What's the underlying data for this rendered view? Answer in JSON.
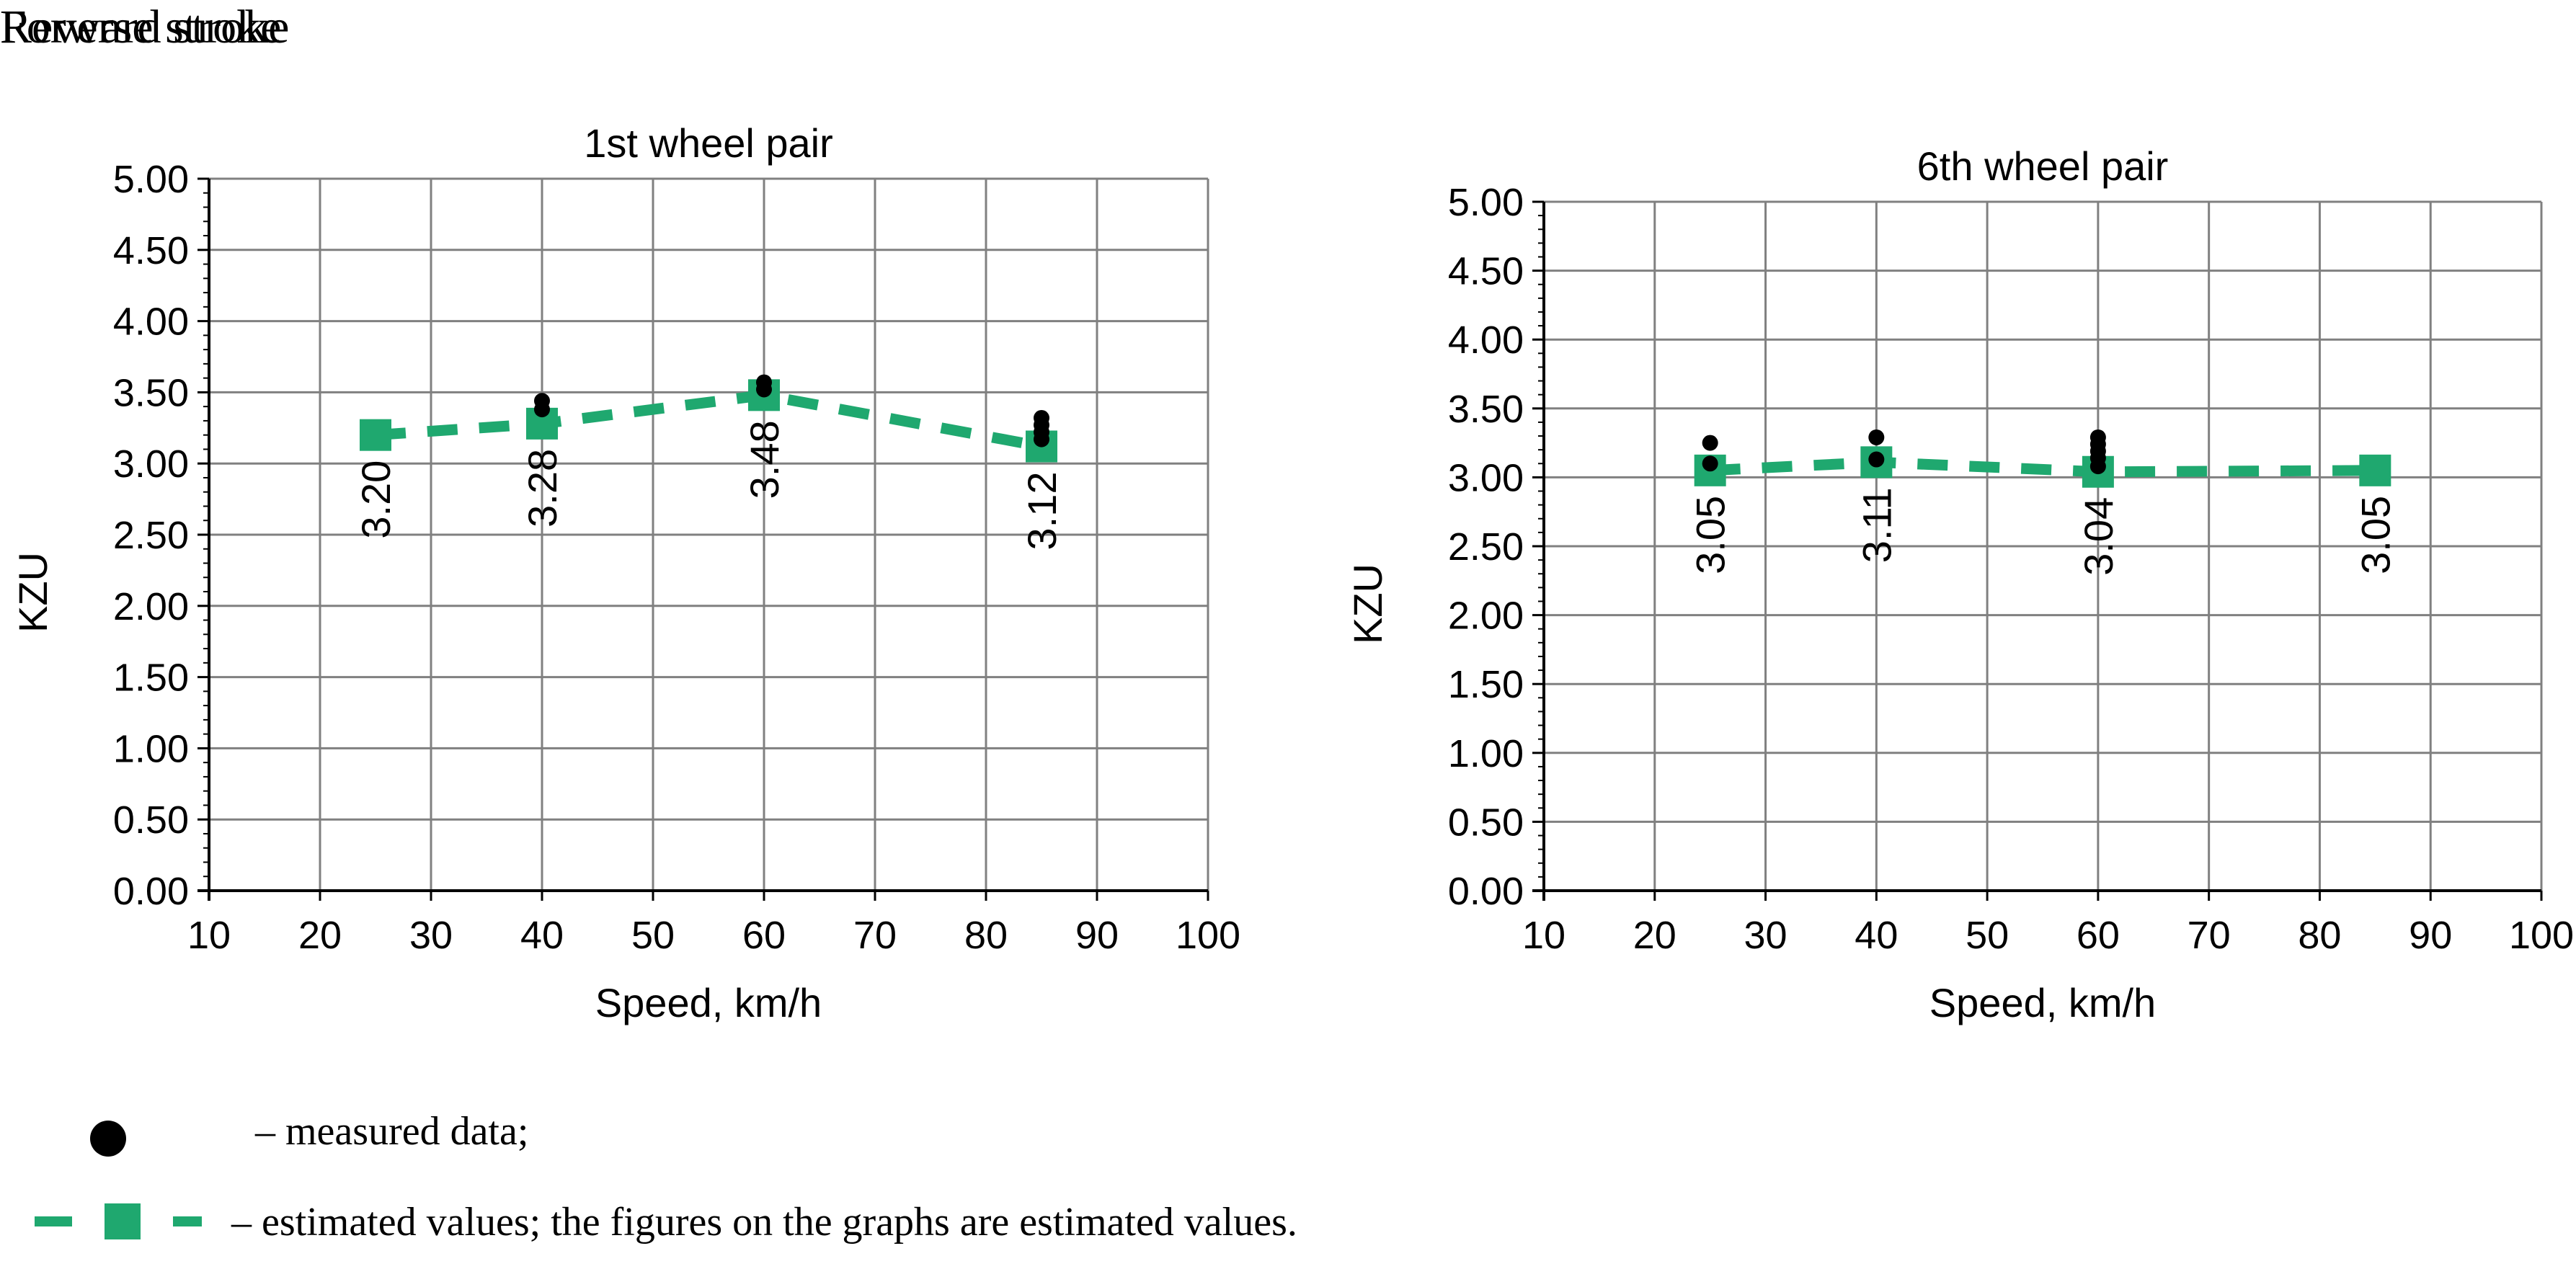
{
  "titles": {
    "forward": "Forward stroke",
    "reverse": "Reverse stroke"
  },
  "legend": {
    "measured": "– measured data;",
    "estimated": "– estimated values; the figures on the graphs are estimated values."
  },
  "colors": {
    "estimated": "#1fa86f",
    "measured": "#000000",
    "grid": "#808080"
  },
  "chart_data": [
    {
      "type": "line",
      "title": "1st wheel pair",
      "xlabel": "Speed, km/h",
      "ylabel": "KZU",
      "xlim": [
        10,
        100
      ],
      "ylim": [
        0,
        5
      ],
      "x_ticks": [
        "10",
        "20",
        "30",
        "40",
        "50",
        "60",
        "70",
        "80",
        "90",
        "100"
      ],
      "y_ticks": [
        "0.00",
        "0.50",
        "1.00",
        "1.50",
        "2.00",
        "2.50",
        "3.00",
        "3.50",
        "4.00",
        "4.50",
        "5.00"
      ],
      "grid": true,
      "series": [
        {
          "style": "dashed-square",
          "x": [
            25,
            40,
            60,
            85
          ],
          "y": [
            3.2,
            3.28,
            3.48,
            3.12
          ],
          "labels": [
            "3.20",
            "3.28",
            "3.48",
            "3.12"
          ]
        },
        {
          "style": "dots",
          "x": [
            40,
            40,
            60,
            60,
            85,
            85,
            85,
            85
          ],
          "y": [
            3.44,
            3.38,
            3.57,
            3.52,
            3.32,
            3.27,
            3.22,
            3.17
          ]
        }
      ]
    },
    {
      "type": "line",
      "title": "6th wheel pair",
      "xlabel": "Speed, km/h",
      "ylabel": "KZU",
      "xlim": [
        10,
        100
      ],
      "ylim": [
        0,
        5
      ],
      "x_ticks": [
        "10",
        "20",
        "30",
        "40",
        "50",
        "60",
        "70",
        "80",
        "90",
        "100"
      ],
      "y_ticks": [
        "0.00",
        "0.50",
        "1.00",
        "1.50",
        "2.00",
        "2.50",
        "3.00",
        "3.50",
        "4.00",
        "4.50",
        "5.00"
      ],
      "grid": true,
      "series": [
        {
          "style": "dashed-square",
          "x": [
            25,
            40,
            60,
            85
          ],
          "y": [
            3.05,
            3.11,
            3.04,
            3.05
          ],
          "labels": [
            "3.05",
            "3.11",
            "3.04",
            "3.05"
          ]
        },
        {
          "style": "dots",
          "x": [
            25,
            25,
            40,
            40,
            60,
            60,
            60,
            60,
            60
          ],
          "y": [
            3.25,
            3.1,
            3.29,
            3.13,
            3.29,
            3.24,
            3.19,
            3.14,
            3.08
          ]
        }
      ]
    }
  ]
}
